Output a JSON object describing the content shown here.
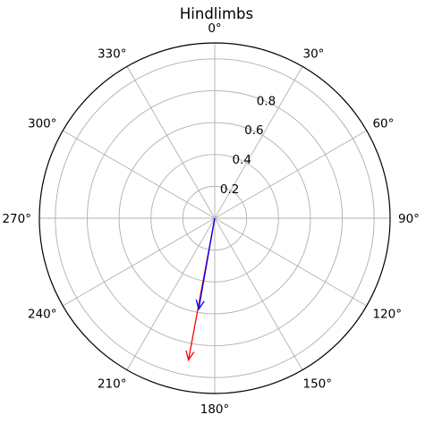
{
  "chart_data": {
    "type": "polar",
    "title": "Hindlimbs",
    "angle_direction": "clockwise",
    "zero_location": "top",
    "angle_tick_labels": [
      "0°",
      "30°",
      "60°",
      "90°",
      "120°",
      "150°",
      "180°",
      "210°",
      "240°",
      "270°",
      "300°",
      "330°"
    ],
    "angle_tick_values": [
      0,
      30,
      60,
      90,
      120,
      150,
      180,
      210,
      240,
      270,
      300,
      330
    ],
    "radial_tick_labels": [
      "0.2",
      "0.4",
      "0.6",
      "0.8"
    ],
    "radial_tick_values": [
      0.2,
      0.4,
      0.6,
      0.8
    ],
    "rlim": [
      0,
      1.1
    ],
    "grid": true,
    "series": [
      {
        "type": "arrow",
        "angle_deg": 190.5,
        "r": 0.905,
        "color": "#ff0000"
      },
      {
        "type": "arrow",
        "angle_deg": 190.0,
        "r": 0.58,
        "color": "#0000ff"
      }
    ]
  }
}
